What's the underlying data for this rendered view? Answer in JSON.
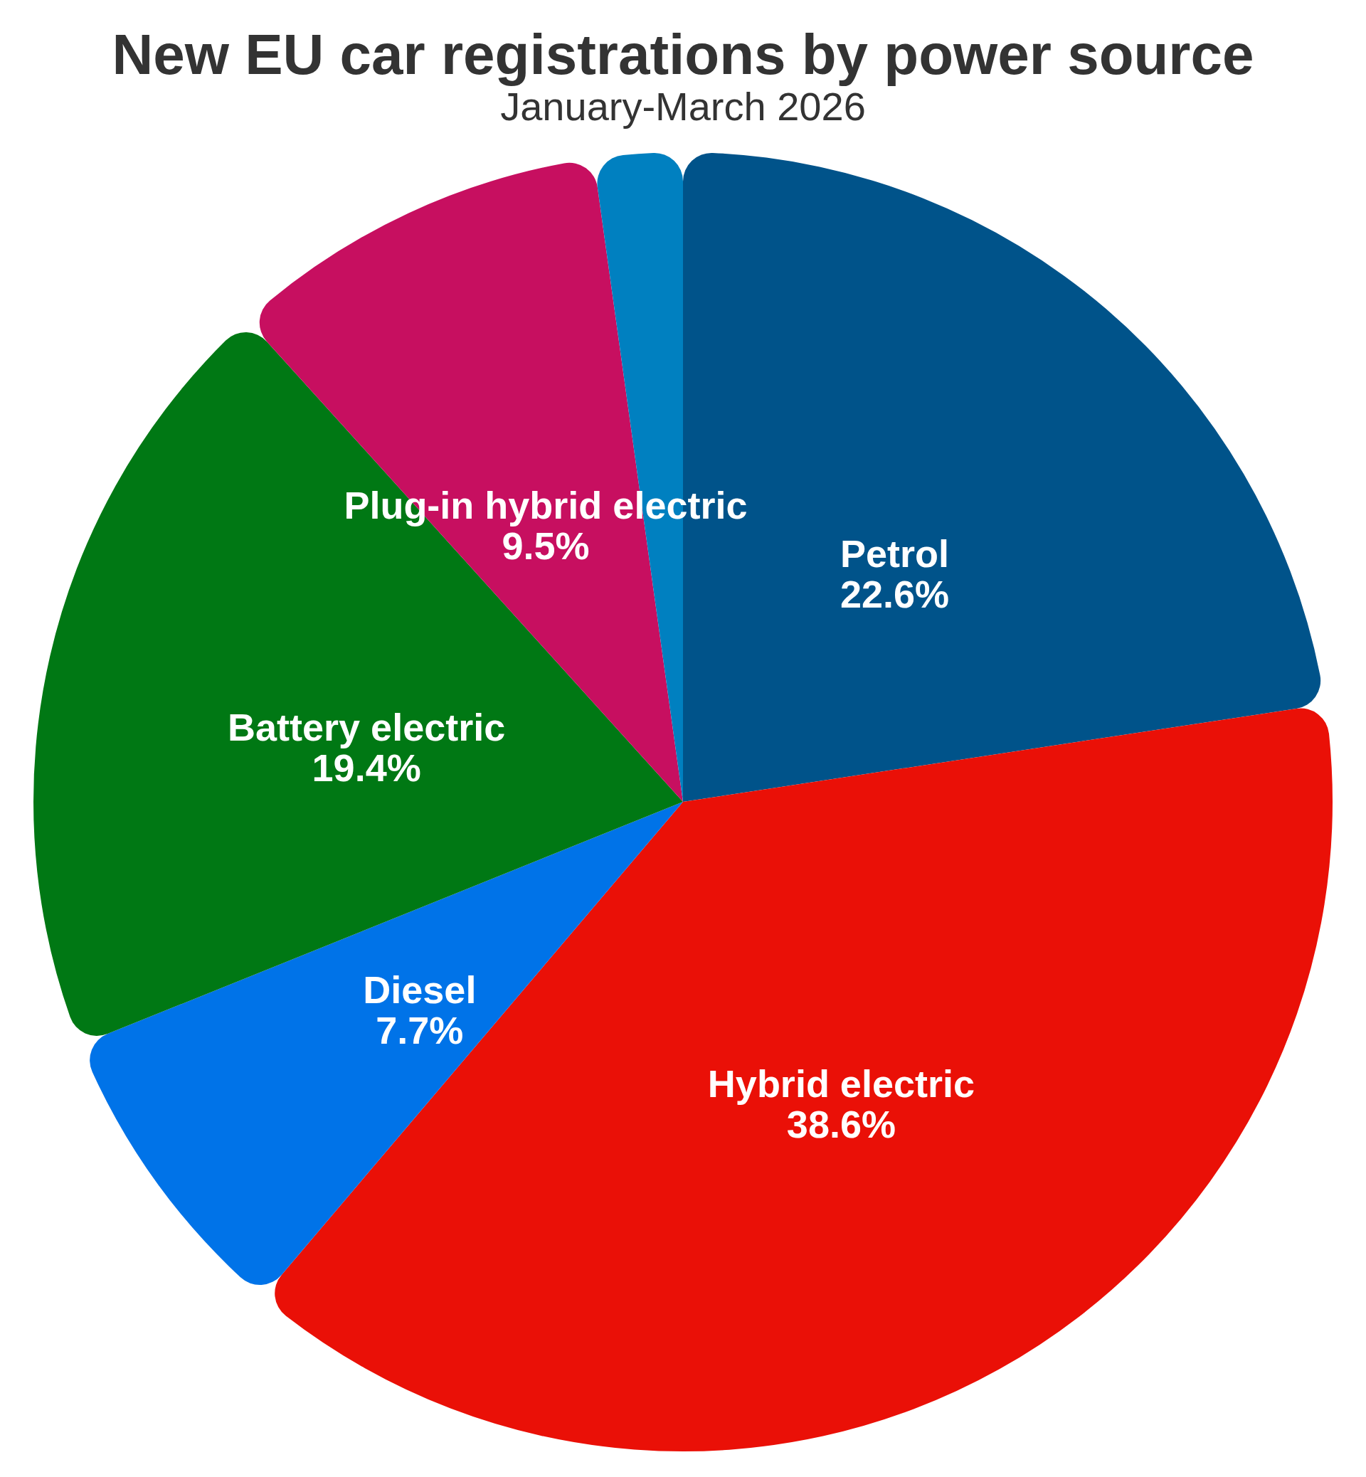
{
  "chart_data": {
    "type": "pie",
    "title": "New EU car registrations by power source",
    "subtitle": "January-March 2026",
    "categories": [
      "Petrol",
      "Hybrid electric",
      "Diesel",
      "Battery electric",
      "Plug-in hybrid electric",
      null
    ],
    "values": [
      22.6,
      38.6,
      7.7,
      19.4,
      9.5,
      2.2
    ],
    "colors": [
      "#00538a",
      "#ea1007",
      "#0073e8",
      "#007814",
      "#c70f60",
      "#0080c0"
    ],
    "value_labels": [
      "22.6%",
      "38.6%",
      "7.7%",
      "19.4%",
      "9.5%",
      null
    ]
  }
}
